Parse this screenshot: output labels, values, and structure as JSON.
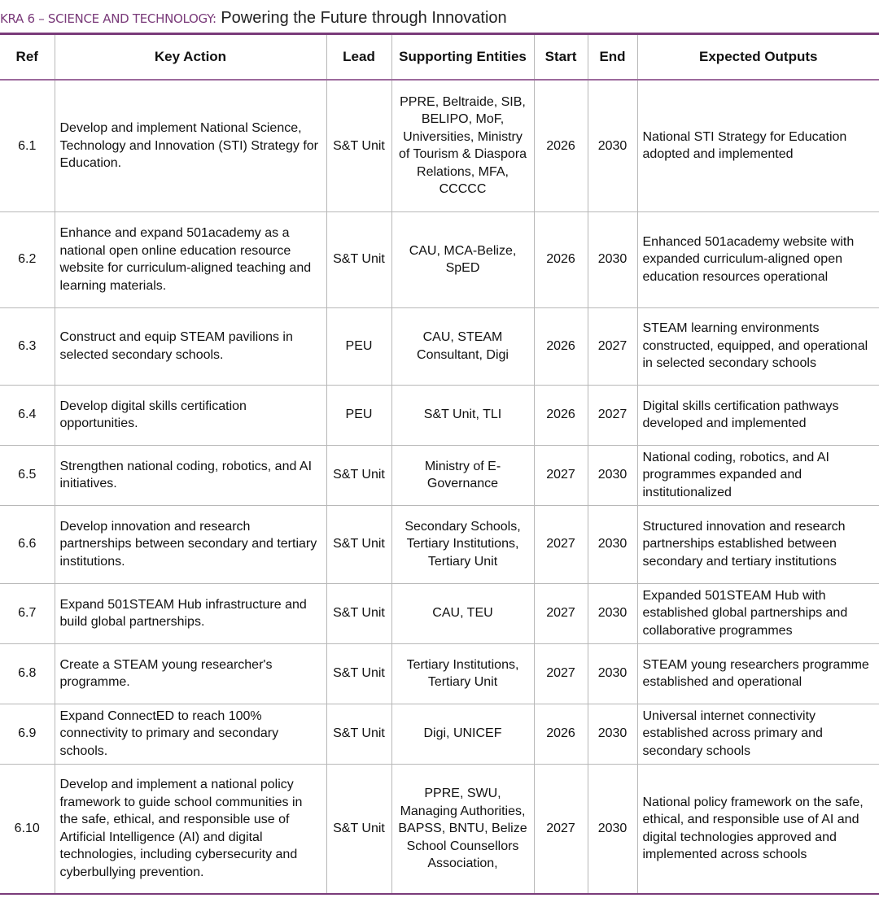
{
  "header": {
    "label": "KRA 6 – SCIENCE AND TECHNOLOGY:",
    "title": "Powering the Future through Innovation"
  },
  "table": {
    "columns": [
      "Ref",
      "Key Action",
      "Lead",
      "Supporting Entities",
      "Start",
      "End",
      "Expected Outputs"
    ],
    "rows": [
      [
        "6.1",
        "Develop and implement National Science, Technology and Innovation (STI) Strategy for Education.",
        "S&T Unit",
        "PPRE, Beltraide, SIB, BELIPO, MoF, Universities, Ministry of Tourism & Diaspora Relations, MFA, CCCCC",
        2026,
        2030,
        "National STI Strategy for Education adopted and implemented"
      ],
      [
        "6.2",
        "Enhance and expand 501academy as a national open online education resource website for curriculum-aligned teaching and learning materials.",
        "S&T Unit",
        "CAU, MCA-Belize, SpED",
        2026,
        2030,
        "Enhanced 501academy website with expanded curriculum-aligned open education resources operational"
      ],
      [
        "6.3",
        "Construct and equip STEAM pavilions in selected secondary schools.",
        "PEU",
        "CAU, STEAM Consultant, Digi",
        2026,
        2027,
        "STEAM learning environments constructed, equipped, and operational in selected secondary schools"
      ],
      [
        "6.4",
        "Develop digital skills certification opportunities.",
        "PEU",
        "S&T Unit, TLI",
        2026,
        2027,
        "Digital skills certification pathways developed and implemented"
      ],
      [
        "6.5",
        "Strengthen national coding, robotics, and AI initiatives.",
        "S&T Unit",
        "Ministry of E-Governance",
        2027,
        2030,
        "National coding, robotics, and AI programmes expanded and institutionalized"
      ],
      [
        "6.6",
        "Develop innovation and research partnerships between secondary and tertiary institutions.",
        "S&T Unit",
        "Secondary Schools, Tertiary Institutions, Tertiary Unit",
        2027,
        2030,
        "Structured innovation and research partnerships established between secondary and tertiary institutions"
      ],
      [
        "6.7",
        "Expand 501STEAM Hub infrastructure and build global partnerships.",
        "S&T Unit",
        "CAU, TEU",
        2027,
        2030,
        "Expanded 501STEAM Hub with established global partnerships and collaborative programmes"
      ],
      [
        "6.8",
        "Create a STEAM young researcher's programme.",
        "S&T Unit",
        "Tertiary Institutions, Tertiary Unit",
        2027,
        2030,
        "STEAM young researchers programme established and operational"
      ],
      [
        "6.9",
        "Expand ConnectED to reach 100% connectivity to primary and secondary schools.",
        "S&T Unit",
        "Digi, UNICEF",
        2026,
        2030,
        "Universal internet connectivity established across primary and secondary schools"
      ],
      [
        "6.10",
        "Develop and implement a national policy framework to guide school communities in the safe, ethical, and responsible use of Artificial Intelligence (AI) and digital technologies, including cybersecurity and cyberbullying prevention.",
        "S&T Unit",
        "PPRE, SWU, Managing Authorities, BAPSS, BNTU, Belize School Counsellors Association,",
        2027,
        2030,
        "National policy framework on the safe, ethical, and responsible use of AI and digital technologies approved and implemented across schools"
      ]
    ]
  }
}
